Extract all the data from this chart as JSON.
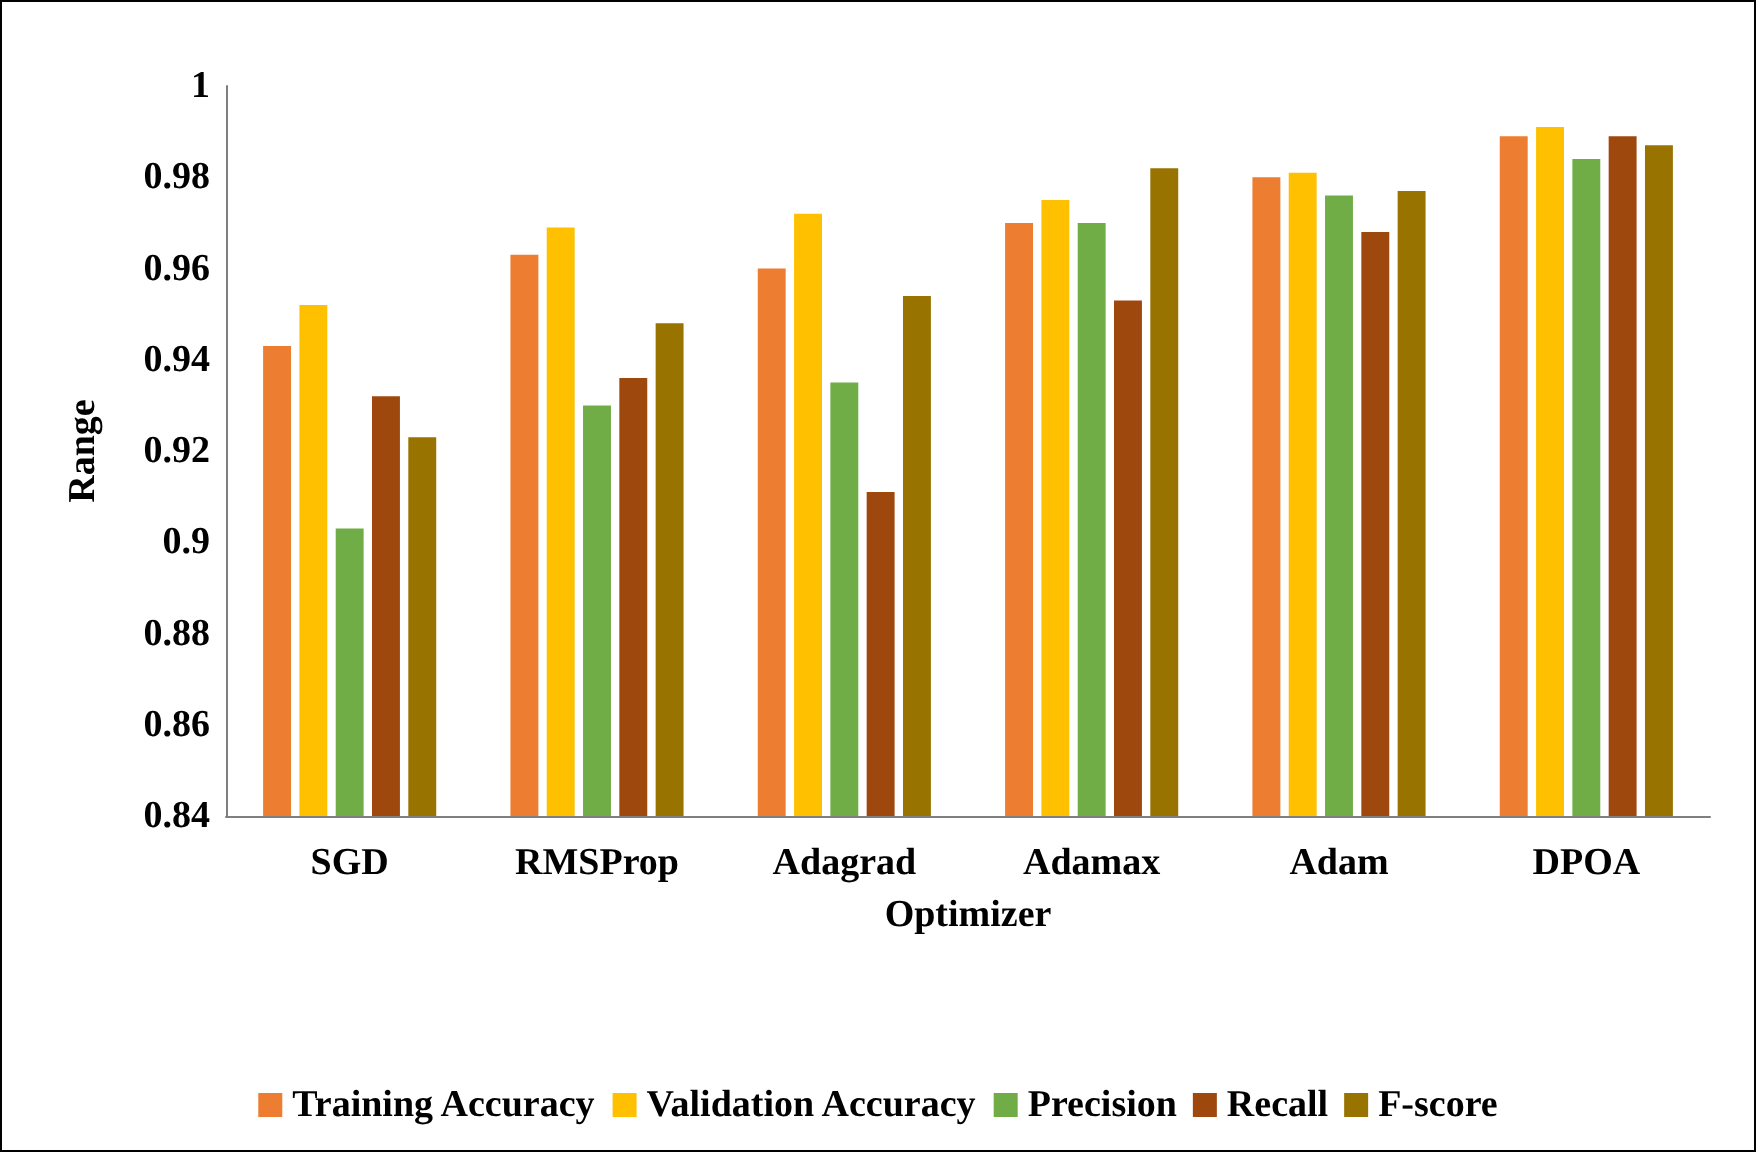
{
  "chart_data": {
    "type": "bar",
    "xlabel": "Optimizer",
    "ylabel": "Range",
    "categories": [
      "SGD",
      "RMSProp",
      "Adagrad",
      "Adamax",
      "Adam",
      "DPOA"
    ],
    "series": [
      {
        "name": "Training Accuracy",
        "color": "#ed7d31",
        "values": [
          0.943,
          0.963,
          0.96,
          0.97,
          0.98,
          0.989
        ]
      },
      {
        "name": "Validation Accuracy",
        "color": "#ffc000",
        "values": [
          0.952,
          0.969,
          0.972,
          0.975,
          0.981,
          0.991
        ]
      },
      {
        "name": "Precision",
        "color": "#70ad47",
        "values": [
          0.903,
          0.93,
          0.935,
          0.97,
          0.976,
          0.984
        ]
      },
      {
        "name": "Recall",
        "color": "#9e480e",
        "values": [
          0.932,
          0.936,
          0.911,
          0.953,
          0.968,
          0.989
        ]
      },
      {
        "name": "F-score",
        "color": "#997300",
        "values": [
          0.923,
          0.948,
          0.954,
          0.982,
          0.977,
          0.987
        ]
      }
    ],
    "ylim": [
      0.84,
      1
    ],
    "yticks": [
      0.84,
      0.86,
      0.88,
      0.9,
      0.92,
      0.94,
      0.96,
      0.98,
      1
    ],
    "grid": false,
    "legend": "bottom"
  }
}
